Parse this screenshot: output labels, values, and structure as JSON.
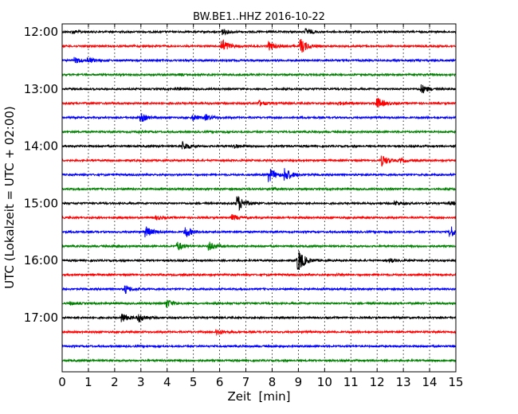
{
  "chart_data": {
    "type": "line",
    "title": "BW.BE1..HHZ 2016-10-22",
    "xlabel": "Zeit  [min]",
    "ylabel": "UTC (Lokalzeit = UTC + 02:00)",
    "xlim": [
      0,
      15
    ],
    "x_ticks": [
      "0",
      "1",
      "2",
      "3",
      "4",
      "5",
      "6",
      "7",
      "8",
      "9",
      "10",
      "11",
      "12",
      "13",
      "14",
      "15"
    ],
    "y_tick_labels": [
      "12:00",
      "13:00",
      "14:00",
      "15:00",
      "16:00",
      "17:00"
    ],
    "trace_start_minutes": 720,
    "trace_interval_minutes": 15,
    "trace_colors": [
      "#000000",
      "#ff0000",
      "#0000ff",
      "#008000"
    ],
    "grid": "vertical dotted",
    "traces": [
      {
        "start": "12:00",
        "events": [
          {
            "t": 0.4,
            "a": 0.2
          },
          {
            "t": 6.1,
            "a": 0.4
          },
          {
            "t": 9.3,
            "a": 0.4
          }
        ]
      },
      {
        "start": "12:15",
        "events": [
          {
            "t": 6.1,
            "a": 1.0
          },
          {
            "t": 7.9,
            "a": 0.5
          },
          {
            "t": 9.1,
            "a": 1.0
          }
        ]
      },
      {
        "start": "12:30",
        "events": [
          {
            "t": 0.5,
            "a": 0.35
          },
          {
            "t": 1.0,
            "a": 0.35
          }
        ]
      },
      {
        "start": "12:45",
        "events": [
          {
            "t": 4.5,
            "a": 0.1
          }
        ]
      },
      {
        "start": "13:00",
        "events": [
          {
            "t": 4.4,
            "a": 0.15
          },
          {
            "t": 13.7,
            "a": 0.6
          }
        ]
      },
      {
        "start": "13:15",
        "events": [
          {
            "t": 7.5,
            "a": 0.35
          },
          {
            "t": 10.5,
            "a": 0.25
          },
          {
            "t": 12.0,
            "a": 0.8
          }
        ]
      },
      {
        "start": "13:30",
        "events": [
          {
            "t": 3.0,
            "a": 0.6
          },
          {
            "t": 5.0,
            "a": 0.35
          },
          {
            "t": 5.5,
            "a": 0.35
          }
        ]
      },
      {
        "start": "13:45",
        "events": [
          {
            "t": 2.9,
            "a": 0.1
          }
        ]
      },
      {
        "start": "14:00",
        "events": [
          {
            "t": 4.6,
            "a": 0.6
          },
          {
            "t": 6.6,
            "a": 0.25
          }
        ]
      },
      {
        "start": "14:15",
        "events": [
          {
            "t": 12.2,
            "a": 0.7
          },
          {
            "t": 12.9,
            "a": 0.2
          }
        ]
      },
      {
        "start": "14:30",
        "events": [
          {
            "t": 7.9,
            "a": 0.9
          },
          {
            "t": 8.5,
            "a": 0.9
          }
        ]
      },
      {
        "start": "14:45",
        "events": [
          {
            "t": 8.0,
            "a": 0.1
          }
        ]
      },
      {
        "start": "15:00",
        "events": [
          {
            "t": 6.7,
            "a": 1.1
          },
          {
            "t": 12.7,
            "a": 0.3
          },
          {
            "t": 14.8,
            "a": 0.2
          }
        ]
      },
      {
        "start": "15:15",
        "events": [
          {
            "t": 3.6,
            "a": 0.25
          },
          {
            "t": 6.5,
            "a": 0.35
          }
        ]
      },
      {
        "start": "15:30",
        "events": [
          {
            "t": 3.2,
            "a": 0.7
          },
          {
            "t": 4.7,
            "a": 0.8
          },
          {
            "t": 14.8,
            "a": 0.8
          }
        ]
      },
      {
        "start": "15:45",
        "events": [
          {
            "t": 4.4,
            "a": 0.6
          },
          {
            "t": 5.6,
            "a": 0.6
          },
          {
            "t": 2.0,
            "a": 0.15
          }
        ]
      },
      {
        "start": "16:00",
        "events": [
          {
            "t": 9.0,
            "a": 1.6
          },
          {
            "t": 12.5,
            "a": 0.25
          }
        ]
      },
      {
        "start": "16:15",
        "events": [
          {
            "t": 10.5,
            "a": 0.1
          }
        ]
      },
      {
        "start": "16:30",
        "events": [
          {
            "t": 2.4,
            "a": 0.55
          }
        ]
      },
      {
        "start": "16:45",
        "events": [
          {
            "t": 0.3,
            "a": 0.2
          },
          {
            "t": 4.0,
            "a": 0.55
          }
        ]
      },
      {
        "start": "17:00",
        "events": [
          {
            "t": 2.3,
            "a": 0.6
          },
          {
            "t": 2.9,
            "a": 0.6
          }
        ]
      },
      {
        "start": "17:15",
        "events": [
          {
            "t": 5.9,
            "a": 0.4
          }
        ]
      },
      {
        "start": "17:30",
        "events": []
      },
      {
        "start": "17:45",
        "events": []
      }
    ]
  }
}
